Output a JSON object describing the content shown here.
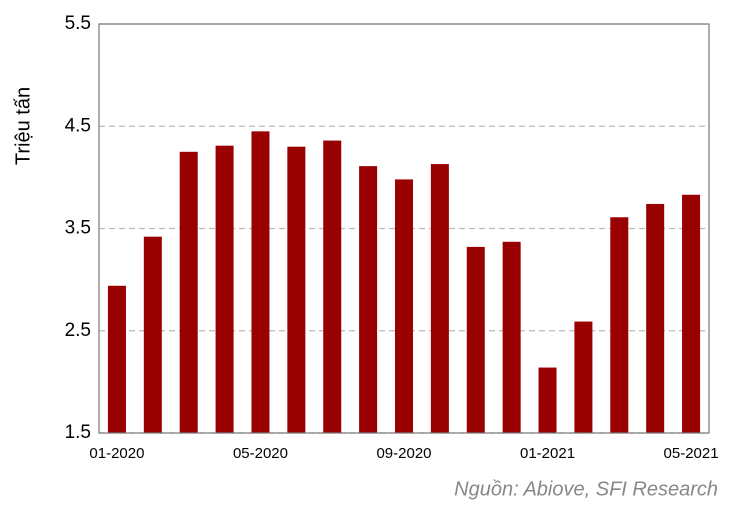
{
  "chart_data": {
    "type": "bar",
    "y_label": "Triệu tấn",
    "source": "Nguồn: Abiove, SFI Research",
    "categories": [
      "01-2020",
      null,
      null,
      null,
      "05-2020",
      null,
      null,
      null,
      "09-2020",
      null,
      null,
      null,
      "01-2021",
      null,
      null,
      null,
      "05-2021"
    ],
    "values": [
      2.94,
      3.42,
      4.25,
      4.31,
      4.45,
      4.3,
      4.36,
      4.11,
      3.98,
      4.13,
      3.32,
      3.37,
      2.14,
      2.59,
      3.61,
      3.74,
      3.83
    ],
    "color": "#990000",
    "ylim": [
      1.5,
      5.5
    ],
    "yticks": [
      1.5,
      2.5,
      3.5,
      4.5,
      5.5
    ],
    "grid": true
  }
}
